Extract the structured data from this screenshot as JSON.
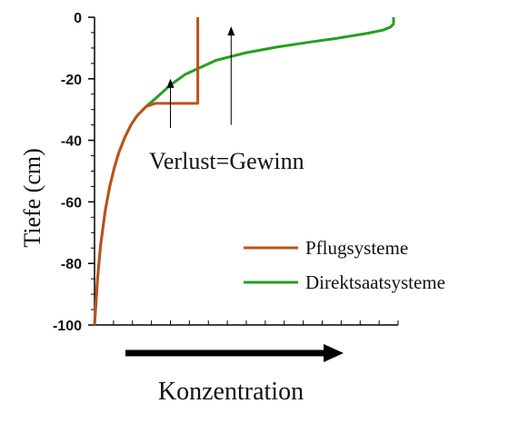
{
  "chart_data": {
    "type": "line",
    "title": "",
    "xlabel": "Konzentration",
    "ylabel": "Tiefe (cm)",
    "xlim": [
      0,
      100
    ],
    "ylim": [
      -100,
      0
    ],
    "yticks": [
      0,
      -20,
      -40,
      -60,
      -80,
      -100
    ],
    "ytick_labels": [
      "0",
      "-20",
      "-40",
      "-60",
      "-80",
      "-100"
    ],
    "x_minor_ticks": 16,
    "x_tick_labels": "none",
    "grid": false,
    "legend_position": "bottom-right",
    "annotation": "Verlust=Gewinn",
    "series": [
      {
        "name": "Pflugsysteme",
        "color": "#c0501c",
        "x": [
          0,
          1,
          2,
          3.5,
          5,
          6.5,
          8,
          10,
          12,
          14,
          17,
          20,
          34,
          34,
          34
        ],
        "y": [
          -100,
          -85,
          -74,
          -63,
          -55,
          -49,
          -44,
          -39,
          -35,
          -32,
          -29,
          -28,
          -28,
          -10,
          0
        ]
      },
      {
        "name": "Direktsaatsysteme",
        "color": "#22a022",
        "x": [
          0,
          1,
          2,
          3.5,
          5,
          6.5,
          8,
          10,
          12,
          14,
          17,
          20,
          25,
          30,
          40,
          50,
          60,
          70,
          80,
          90,
          95,
          97.5,
          98.5,
          98.5,
          98.5
        ],
        "y": [
          -100,
          -85,
          -74,
          -63,
          -55,
          -49,
          -44,
          -39,
          -35,
          -32,
          -29,
          -26.5,
          -22,
          -18.5,
          -14,
          -11.5,
          -9.7,
          -8.2,
          -6.8,
          -5.2,
          -4.2,
          -3.2,
          -2.2,
          -1,
          0
        ]
      }
    ]
  },
  "arrows": [
    {
      "x": 25,
      "y_start": -36,
      "y_end": -20
    },
    {
      "x": 45,
      "y_start": -35,
      "y_end": -3
    }
  ]
}
